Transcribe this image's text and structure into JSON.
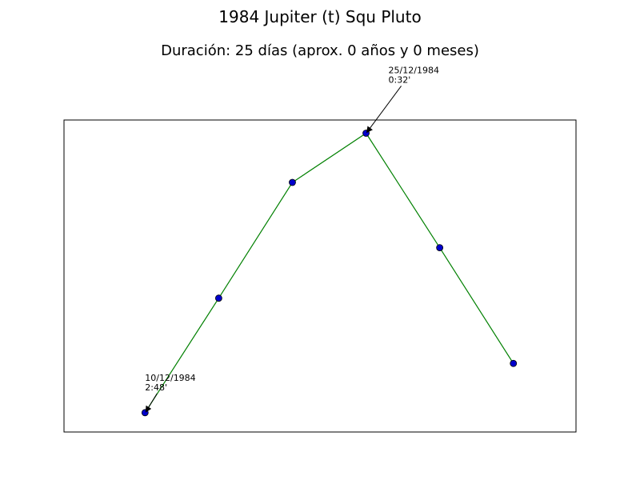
{
  "chart_data": {
    "type": "line",
    "title": "1984 Jupiter (t) Squ Pluto",
    "subtitle": "Duración: 25 días (aprox. 0 años y 0 meses)",
    "xlabel": "",
    "ylabel": "",
    "x": [
      0,
      1,
      2,
      3,
      4,
      5
    ],
    "y": [
      2.8,
      1.87,
      0.93,
      0.53,
      1.46,
      2.4
    ],
    "xlim": [
      -1.1,
      5.85
    ],
    "ylim": [
      2.957,
      0.423
    ],
    "grid": false,
    "axes_ticks_visible": false,
    "series": [
      {
        "values": [
          2.8,
          1.87,
          0.93,
          0.53,
          1.46,
          2.4
        ],
        "line_color": "#008000",
        "marker_color": "#0000cc"
      }
    ],
    "annotations": [
      {
        "point_index": 0,
        "date": "10/12/1984",
        "value": "2:48'"
      },
      {
        "point_index": 3,
        "date": "25/12/1984",
        "value": "0:32'"
      }
    ]
  }
}
